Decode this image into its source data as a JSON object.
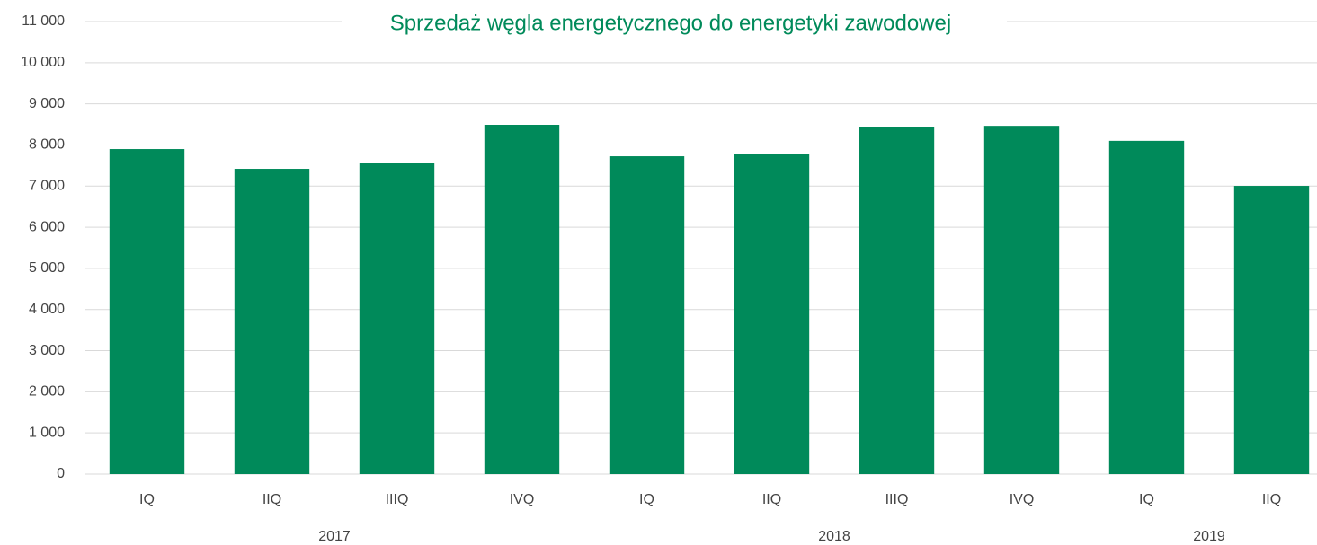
{
  "chart_data": {
    "type": "bar",
    "title": "Sprzedaż węgla energetycznego do energetyki zawodowej",
    "categories": [
      "IQ",
      "IIQ",
      "IIIQ",
      "IVQ",
      "IQ",
      "IIQ",
      "IIIQ",
      "IVQ",
      "IQ",
      "IIQ"
    ],
    "groups": [
      {
        "label": "2017",
        "size": 4
      },
      {
        "label": "2018",
        "size": 4
      },
      {
        "label": "2019",
        "size": 2
      }
    ],
    "values": [
      7900,
      7420,
      7570,
      8490,
      7725,
      7770,
      8445,
      8465,
      8100,
      7005
    ],
    "color": "#008a5a",
    "ylim": [
      0,
      11000
    ],
    "yticks": [
      0,
      {
        "value": 1000,
        "label": "1 000"
      },
      {
        "value": 2000,
        "label": "2 000"
      },
      {
        "value": 3000,
        "label": "3 000"
      },
      {
        "value": 4000,
        "label": "4 000"
      },
      {
        "value": 5000,
        "label": "5 000"
      },
      {
        "value": 6000,
        "label": "6 000"
      },
      {
        "value": 7000,
        "label": "7 000"
      },
      {
        "value": 8000,
        "label": "8 000"
      },
      {
        "value": 9000,
        "label": "9 000"
      },
      {
        "value": 10000,
        "label": "10 000"
      },
      {
        "value": 11000,
        "label": "11 000"
      }
    ],
    "grid": true
  }
}
